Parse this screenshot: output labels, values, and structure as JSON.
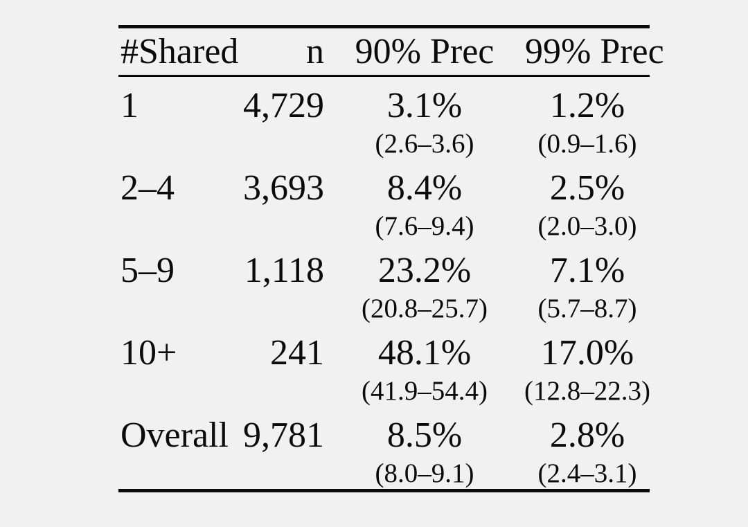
{
  "page": {
    "background_color": "#f1f1f2",
    "text_color": "#0b0b0b",
    "rule_color": "#0b0b0b"
  },
  "table": {
    "style": "booktabs",
    "columns": [
      {
        "key": "shared",
        "label": "#Shared",
        "align": "left"
      },
      {
        "key": "n",
        "label": "n",
        "align": "right"
      },
      {
        "key": "p90",
        "label": "90% Prec",
        "align": "center"
      },
      {
        "key": "p99",
        "label": "99% Prec",
        "align": "center"
      }
    ],
    "rows": [
      {
        "shared": "1",
        "n": "4,729",
        "p90": {
          "value": "3.1%",
          "ci": "(2.6–3.6)"
        },
        "p99": {
          "value": "1.2%",
          "ci": "(0.9–1.6)"
        }
      },
      {
        "shared": "2–4",
        "n": "3,693",
        "p90": {
          "value": "8.4%",
          "ci": "(7.6–9.4)"
        },
        "p99": {
          "value": "2.5%",
          "ci": "(2.0–3.0)"
        }
      },
      {
        "shared": "5–9",
        "n": "1,118",
        "p90": {
          "value": "23.2%",
          "ci": "(20.8–25.7)"
        },
        "p99": {
          "value": "7.1%",
          "ci": "(5.7–8.7)"
        }
      },
      {
        "shared": "10+",
        "n": "241",
        "p90": {
          "value": "48.1%",
          "ci": "(41.9–54.4)"
        },
        "p99": {
          "value": "17.0%",
          "ci": "(12.8–22.3)"
        }
      },
      {
        "shared": "Overall",
        "n": "9,781",
        "p90": {
          "value": "8.5%",
          "ci": "(8.0–9.1)"
        },
        "p99": {
          "value": "2.8%",
          "ci": "(2.4–3.1)"
        }
      }
    ]
  }
}
